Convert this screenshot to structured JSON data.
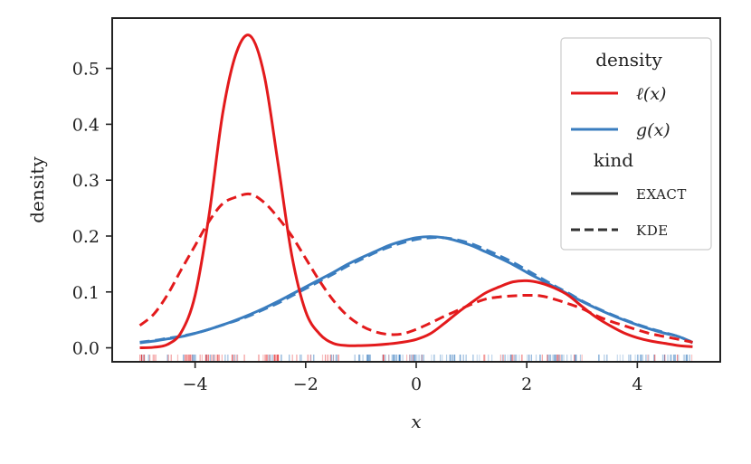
{
  "chart_data": {
    "type": "line",
    "xlabel": "x",
    "ylabel": "density",
    "xlim": [
      -5.5,
      5.5
    ],
    "ylim": [
      -0.025,
      0.59
    ],
    "xticks": [
      -4,
      -2,
      0,
      2,
      4
    ],
    "xtick_labels": [
      "−4",
      "−2",
      "0",
      "2",
      "4"
    ],
    "yticks": [
      0.0,
      0.1,
      0.2,
      0.3,
      0.4,
      0.5
    ],
    "ytick_labels": [
      "0.0",
      "0.1",
      "0.2",
      "0.3",
      "0.4",
      "0.5"
    ],
    "grid": false,
    "legend": {
      "placement": "top-right",
      "title_density": "density",
      "title_kind": "kind",
      "density_entries": [
        {
          "label": "ℓ(x)",
          "color": "#e31a1c"
        },
        {
          "label": "g(x)",
          "color": "#3a7dbf"
        }
      ],
      "kind_entries": [
        {
          "label": "EXACT",
          "style": "solid"
        },
        {
          "label": "KDE",
          "style": "dashed"
        }
      ]
    },
    "series": [
      {
        "name": "ℓ(x)",
        "kind": "EXACT",
        "color": "#e31a1c",
        "style": "solid",
        "x": [
          -5.0,
          -4.75,
          -4.5,
          -4.25,
          -4.0,
          -3.75,
          -3.5,
          -3.25,
          -3.0,
          -2.75,
          -2.5,
          -2.25,
          -2.0,
          -1.75,
          -1.5,
          -1.25,
          -1.0,
          -0.75,
          -0.5,
          -0.25,
          0.0,
          0.25,
          0.5,
          0.75,
          1.0,
          1.25,
          1.5,
          1.75,
          2.0,
          2.25,
          2.5,
          2.75,
          3.0,
          3.25,
          3.5,
          3.75,
          4.0,
          4.25,
          4.5,
          4.75,
          5.0
        ],
        "y": [
          0.0,
          0.001,
          0.006,
          0.028,
          0.094,
          0.236,
          0.42,
          0.529,
          0.558,
          0.488,
          0.33,
          0.165,
          0.065,
          0.025,
          0.008,
          0.004,
          0.004,
          0.005,
          0.007,
          0.01,
          0.015,
          0.025,
          0.043,
          0.063,
          0.081,
          0.098,
          0.109,
          0.118,
          0.12,
          0.116,
          0.107,
          0.094,
          0.074,
          0.055,
          0.04,
          0.027,
          0.018,
          0.012,
          0.008,
          0.004,
          0.002
        ]
      },
      {
        "name": "ℓ(x)",
        "kind": "KDE",
        "color": "#e31a1c",
        "style": "dashed",
        "x": [
          -5.0,
          -4.75,
          -4.5,
          -4.25,
          -4.0,
          -3.75,
          -3.5,
          -3.25,
          -3.0,
          -2.75,
          -2.5,
          -2.25,
          -2.0,
          -1.75,
          -1.5,
          -1.25,
          -1.0,
          -0.75,
          -0.5,
          -0.25,
          0.0,
          0.25,
          0.5,
          0.75,
          1.0,
          1.25,
          1.5,
          1.75,
          2.0,
          2.25,
          2.5,
          2.75,
          3.0,
          3.25,
          3.5,
          3.75,
          4.0,
          4.25,
          4.5,
          4.75,
          5.0
        ],
        "y": [
          0.04,
          0.06,
          0.095,
          0.14,
          0.183,
          0.226,
          0.258,
          0.27,
          0.275,
          0.26,
          0.233,
          0.2,
          0.16,
          0.12,
          0.085,
          0.058,
          0.04,
          0.029,
          0.024,
          0.025,
          0.033,
          0.044,
          0.056,
          0.067,
          0.078,
          0.087,
          0.091,
          0.093,
          0.094,
          0.093,
          0.087,
          0.079,
          0.07,
          0.058,
          0.048,
          0.04,
          0.032,
          0.025,
          0.02,
          0.015,
          0.01
        ]
      },
      {
        "name": "g(x)",
        "kind": "EXACT",
        "color": "#3a7dbf",
        "style": "solid",
        "x": [
          -5.0,
          -4.75,
          -4.5,
          -4.25,
          -4.0,
          -3.75,
          -3.5,
          -3.25,
          -3.0,
          -2.75,
          -2.5,
          -2.25,
          -2.0,
          -1.75,
          -1.5,
          -1.25,
          -1.0,
          -0.75,
          -0.5,
          -0.25,
          0.0,
          0.25,
          0.5,
          0.75,
          1.0,
          1.25,
          1.5,
          1.75,
          2.0,
          2.25,
          2.5,
          2.75,
          3.0,
          3.25,
          3.5,
          3.75,
          4.0,
          4.25,
          4.5,
          4.75,
          5.0
        ],
        "y": [
          0.009,
          0.012,
          0.016,
          0.02,
          0.026,
          0.033,
          0.041,
          0.05,
          0.06,
          0.071,
          0.083,
          0.096,
          0.109,
          0.122,
          0.135,
          0.149,
          0.161,
          0.172,
          0.183,
          0.191,
          0.197,
          0.199,
          0.197,
          0.191,
          0.183,
          0.172,
          0.161,
          0.149,
          0.135,
          0.122,
          0.109,
          0.096,
          0.083,
          0.071,
          0.06,
          0.05,
          0.041,
          0.033,
          0.026,
          0.02,
          0.009
        ]
      },
      {
        "name": "g(x)",
        "kind": "KDE",
        "color": "#3a7dbf",
        "style": "dashed",
        "x": [
          -5.0,
          -4.75,
          -4.5,
          -4.25,
          -4.0,
          -3.75,
          -3.5,
          -3.25,
          -3.0,
          -2.75,
          -2.5,
          -2.25,
          -2.0,
          -1.75,
          -1.5,
          -1.25,
          -1.0,
          -0.75,
          -0.5,
          -0.25,
          0.0,
          0.25,
          0.5,
          0.75,
          1.0,
          1.25,
          1.5,
          1.75,
          2.0,
          2.25,
          2.5,
          2.75,
          3.0,
          3.25,
          3.5,
          3.75,
          4.0,
          4.25,
          4.5,
          4.75,
          5.0
        ],
        "y": [
          0.01,
          0.013,
          0.017,
          0.021,
          0.026,
          0.033,
          0.041,
          0.049,
          0.058,
          0.069,
          0.08,
          0.093,
          0.106,
          0.119,
          0.132,
          0.146,
          0.158,
          0.17,
          0.18,
          0.188,
          0.194,
          0.197,
          0.197,
          0.193,
          0.186,
          0.176,
          0.165,
          0.153,
          0.139,
          0.125,
          0.111,
          0.098,
          0.084,
          0.072,
          0.061,
          0.051,
          0.042,
          0.034,
          0.027,
          0.02,
          0.01
        ]
      }
    ]
  }
}
